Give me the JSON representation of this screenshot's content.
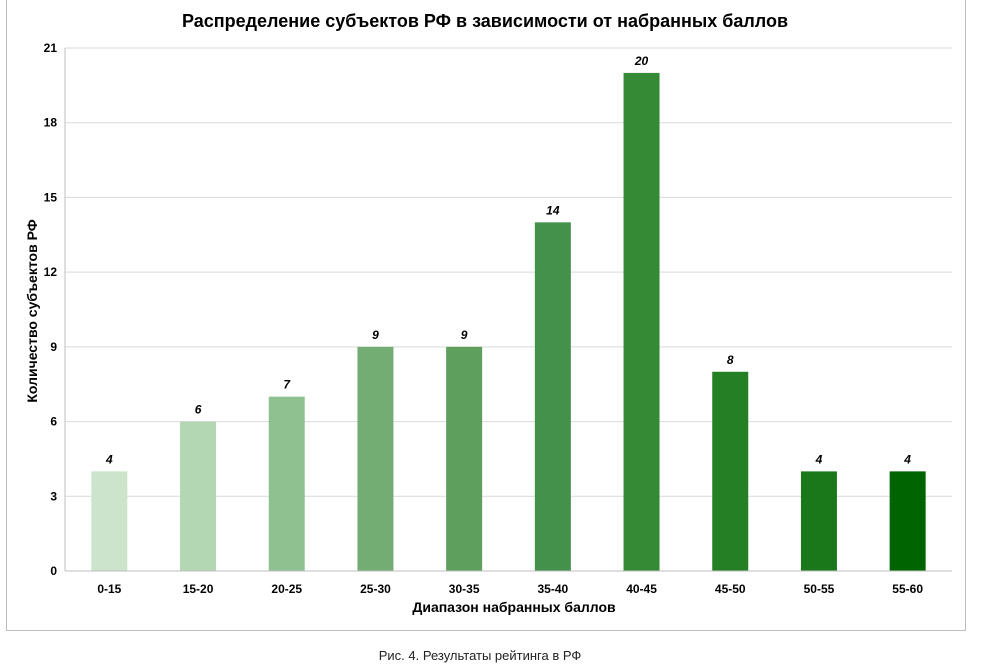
{
  "chart_data": {
    "type": "bar",
    "title": "Распределение субъектов РФ в зависимости от набранных баллов",
    "xlabel": "Диапазон набранных баллов",
    "ylabel": "Количество субъектов РФ",
    "categories": [
      "0-15",
      "15-20",
      "20-25",
      "25-30",
      "30-35",
      "35-40",
      "40-45",
      "45-50",
      "50-55",
      "55-60"
    ],
    "values": [
      4,
      6,
      7,
      9,
      9,
      14,
      20,
      8,
      4,
      4
    ],
    "colors": [
      "#cce3cc",
      "#b3d6b3",
      "#8fc08f",
      "#74ad74",
      "#5e9f5e",
      "#43914a",
      "#358a35",
      "#257f25",
      "#1a781a",
      "#006400"
    ],
    "ylim": [
      0,
      21
    ],
    "yticks": [
      0,
      3,
      6,
      9,
      12,
      15,
      18,
      21
    ],
    "grid": true,
    "data_labels": true,
    "legend": "none"
  },
  "caption": "Рис. 4. Результаты рейтинга в РФ"
}
